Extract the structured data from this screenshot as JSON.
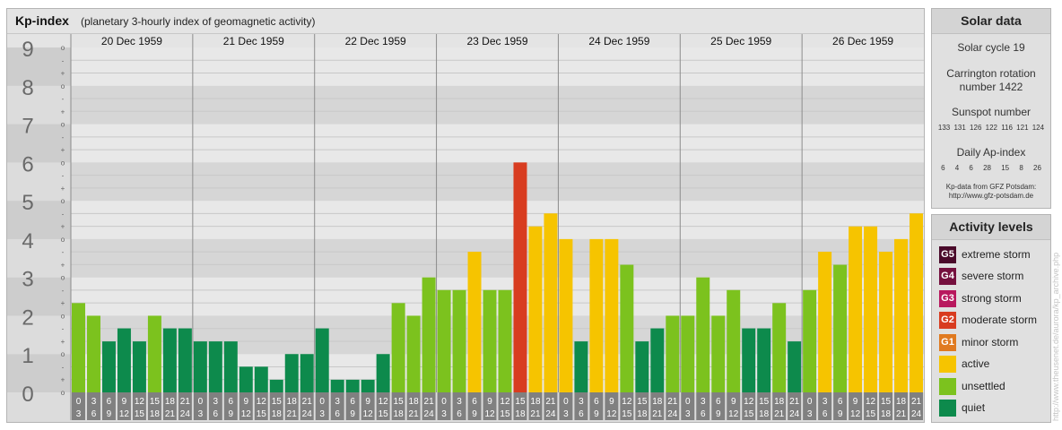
{
  "header": {
    "title": "Kp-index",
    "subtitle": "(planetary 3-hourly index of geomagnetic activity)"
  },
  "chart_data": {
    "type": "bar",
    "title": "Kp-index",
    "subtitle": "(planetary 3-hourly index of geomagnetic activity)",
    "ylim": [
      0,
      9
    ],
    "y_ticks": [
      "0",
      "1",
      "2",
      "3",
      "4",
      "5",
      "6",
      "7",
      "8",
      "9"
    ],
    "minor_tick_labels": [
      "o",
      "+",
      "-"
    ],
    "days": [
      "20 Dec 1959",
      "21 Dec 1959",
      "22 Dec 1959",
      "23 Dec 1959",
      "24 Dec 1959",
      "25 Dec 1959",
      "26 Dec 1959"
    ],
    "intervals": [
      [
        "0",
        "3"
      ],
      [
        "3",
        "6"
      ],
      [
        "6",
        "9"
      ],
      [
        "9",
        "12"
      ],
      [
        "12",
        "15"
      ],
      [
        "15",
        "18"
      ],
      [
        "18",
        "21"
      ],
      [
        "21",
        "24"
      ]
    ],
    "values": [
      [
        2.33,
        2.0,
        1.33,
        1.67,
        1.33,
        2.0,
        1.67,
        1.67
      ],
      [
        1.33,
        1.33,
        1.33,
        0.67,
        0.67,
        0.33,
        1.0,
        1.0
      ],
      [
        1.67,
        0.33,
        0.33,
        0.33,
        1.0,
        2.33,
        2.0,
        3.0
      ],
      [
        2.67,
        2.67,
        3.67,
        2.67,
        2.67,
        6.0,
        4.33,
        4.67
      ],
      [
        4.0,
        1.33,
        4.0,
        4.0,
        3.33,
        1.33,
        1.67,
        2.0
      ],
      [
        2.0,
        3.0,
        2.0,
        2.67,
        1.67,
        1.67,
        2.33,
        1.33
      ],
      [
        2.67,
        3.67,
        3.33,
        4.33,
        4.33,
        3.67,
        4.0,
        4.67
      ]
    ],
    "grid": true
  },
  "solar": {
    "title": "Solar data",
    "cycle": "Solar cycle 19",
    "carrington_line1": "Carrington rotation",
    "carrington_line2": "number 1422",
    "sunspot_label": "Sunspot number",
    "sunspot_values": "133 131 126 122 116 121 124",
    "ap_label": "Daily Ap-index",
    "ap_values": "6 4 6 28 15 8 26",
    "source_line1": "Kp-data from GFZ Potsdam:",
    "source_line2": "http://www.gfz-potsdam.de"
  },
  "levels": {
    "title": "Activity levels",
    "items": [
      {
        "badge": "G5",
        "label": "extreme storm",
        "color": "#4a0a2a"
      },
      {
        "badge": "G4",
        "label": "severe storm",
        "color": "#75103e"
      },
      {
        "badge": "G3",
        "label": "strong storm",
        "color": "#b8185e"
      },
      {
        "badge": "G2",
        "label": "moderate storm",
        "color": "#d83c20"
      },
      {
        "badge": "G1",
        "label": "minor storm",
        "color": "#e07a20"
      },
      {
        "badge": "",
        "label": "active",
        "color": "#f6c400"
      },
      {
        "badge": "",
        "label": "unsettled",
        "color": "#7cc21e"
      },
      {
        "badge": "",
        "label": "quiet",
        "color": "#0d8a4c"
      }
    ]
  },
  "credit": "http://www.theusenet.de/aurora/kp_archive.php"
}
